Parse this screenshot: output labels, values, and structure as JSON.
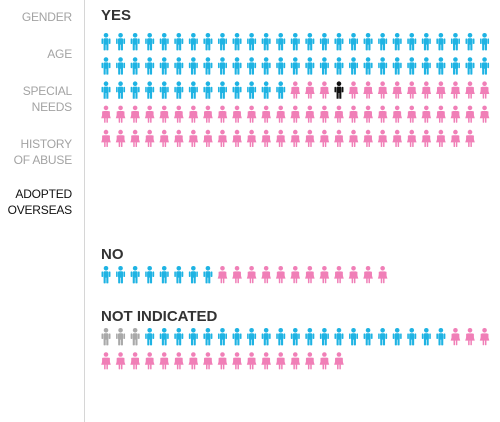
{
  "sidebar": {
    "items": [
      {
        "label": "GENDER",
        "active": false
      },
      {
        "label": "AGE",
        "active": false
      },
      {
        "label": "SPECIAL\nNEEDS",
        "active": false
      },
      {
        "label": "HISTORY\nOF ABUSE",
        "active": false
      },
      {
        "label": "ADOPTED\nOVERSEAS",
        "active": true
      }
    ]
  },
  "colors": {
    "male": "#1eb3e3",
    "female": "#f07fb7",
    "unknown": "#a9a9a9",
    "highlight": "#111111"
  },
  "chart_data": {
    "type": "isotype",
    "groups": [
      {
        "title": "YES",
        "segments": [
          {
            "kind": "male",
            "count": 67
          },
          {
            "kind": "female",
            "count": 3
          },
          {
            "kind": "highlight",
            "count": 1
          },
          {
            "kind": "female",
            "count": 63
          }
        ]
      },
      {
        "title": "NO",
        "segments": [
          {
            "kind": "male",
            "count": 8
          },
          {
            "kind": "female",
            "count": 12
          }
        ]
      },
      {
        "title": "NOT INDICATED",
        "segments": [
          {
            "kind": "unknown",
            "count": 3
          },
          {
            "kind": "male",
            "count": 21
          },
          {
            "kind": "female",
            "count": 20
          }
        ]
      }
    ]
  }
}
